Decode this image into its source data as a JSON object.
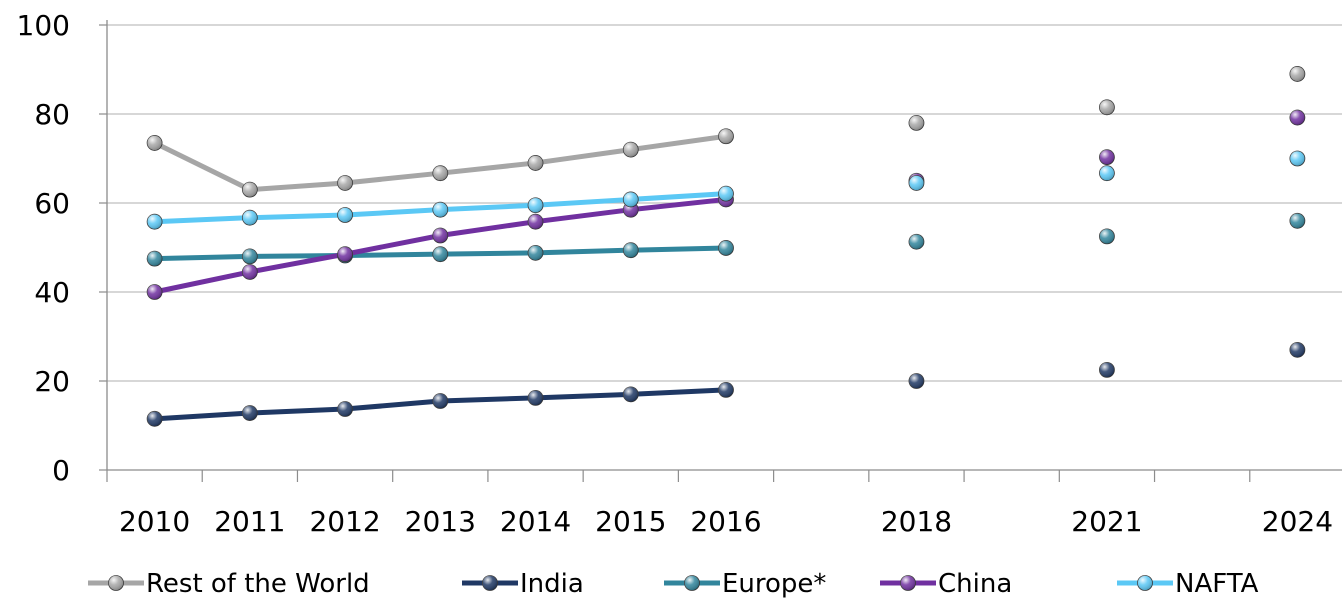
{
  "chart_data": {
    "type": "line",
    "title": "",
    "xlabel": "",
    "ylabel": "",
    "ylim": [
      0,
      100
    ],
    "yticks": [
      0,
      20,
      40,
      60,
      80,
      100
    ],
    "categories": [
      "2010",
      "2011",
      "2012",
      "2013",
      "2014",
      "2015",
      "2016",
      "",
      "2018",
      "",
      "2021",
      "",
      "2024"
    ],
    "line_range_end_index": 6,
    "grid": "horizontal",
    "legend_position": "bottom",
    "series": [
      {
        "name": "Rest of the World",
        "color": "#a6a6a6",
        "values": [
          73.5,
          63,
          64.5,
          66.7,
          69,
          72,
          75,
          null,
          78,
          null,
          81.5,
          null,
          89
        ]
      },
      {
        "name": "India",
        "color": "#1f3864",
        "values": [
          11.5,
          12.8,
          13.7,
          15.5,
          16.2,
          17,
          18,
          null,
          20,
          null,
          22.5,
          null,
          27
        ]
      },
      {
        "name": "Europe*",
        "color": "#31859c",
        "values": [
          47.5,
          48,
          48.2,
          48.5,
          48.8,
          49.4,
          49.9,
          null,
          51.3,
          null,
          52.5,
          null,
          56
        ]
      },
      {
        "name": "China",
        "color": "#7030a0",
        "values": [
          40,
          44.5,
          48.5,
          52.7,
          55.8,
          58.5,
          60.8,
          null,
          65,
          null,
          70.3,
          null,
          79.2
        ]
      },
      {
        "name": "NAFTA",
        "color": "#5bc8f5",
        "values": [
          55.8,
          56.7,
          57.3,
          58.5,
          59.5,
          60.8,
          62.1,
          null,
          64.5,
          null,
          66.7,
          null,
          70
        ]
      }
    ]
  }
}
